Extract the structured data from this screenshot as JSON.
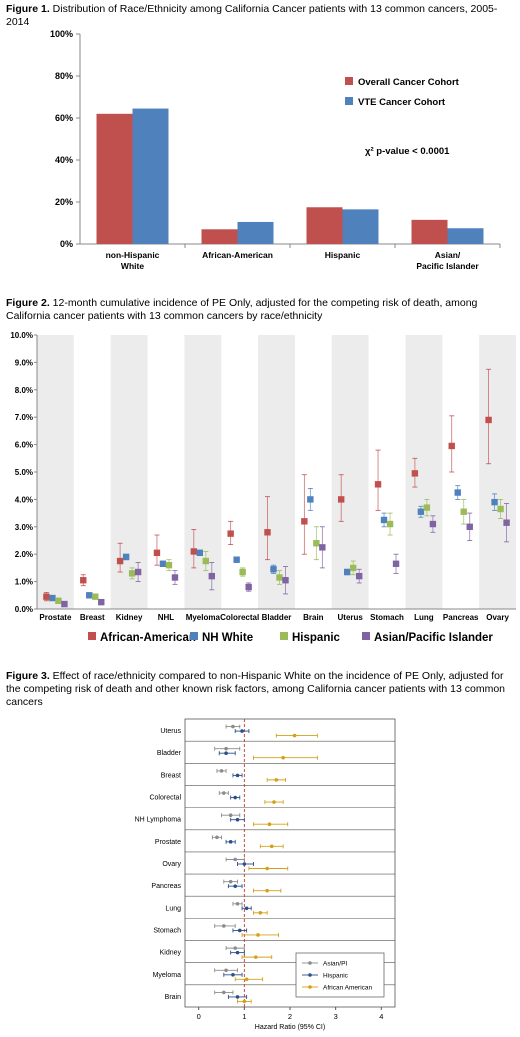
{
  "captions": {
    "fig1_label": "Figure 1.",
    "fig1_text": " Distribution of Race/Ethnicity among California Cancer patients with 13 common cancers, 2005-2014",
    "fig2_label": "Figure 2.",
    "fig2_text": " 12-month cumulative incidence of PE Only, adjusted for the competing risk of death, among California cancer patients with 13 common cancers by race/ethnicity",
    "fig3_label": "Figure 3.",
    "fig3_text": " Effect of race/ethnicity compared to non-Hispanic White on the incidence of PE Only, adjusted for the competing risk of death and other known risk factors, among California cancer patients with 13 common cancers"
  },
  "chart_data": [
    {
      "type": "bar",
      "categories": [
        "non-Hispanic\nWhite",
        "African-American",
        "Hispanic",
        "Asian/\nPacific Islander"
      ],
      "series": [
        {
          "name": "Overall Cancer Cohort",
          "color": "#c0504d",
          "values": [
            62,
            7,
            17.5,
            11.5
          ]
        },
        {
          "name": "VTE Cancer Cohort",
          "color": "#4f81bd",
          "values": [
            64.5,
            10.5,
            16.5,
            7.5
          ]
        }
      ],
      "ylim": [
        0,
        100
      ],
      "yticks": [
        "0%",
        "20%",
        "40%",
        "60%",
        "80%",
        "100%"
      ],
      "annotation": "χ² p-value < 0.0001",
      "legend_position": "right"
    },
    {
      "type": "scatter",
      "categories": [
        "Prostate",
        "Breast",
        "Kidney",
        "NHL",
        "Myeloma",
        "Colorectal",
        "Bladder",
        "Brain",
        "Uterus",
        "Stomach",
        "Lung",
        "Pancreas",
        "Ovary"
      ],
      "ylim": [
        0,
        10
      ],
      "yticks": [
        "0.0%",
        "1.0%",
        "2.0%",
        "3.0%",
        "4.0%",
        "5.0%",
        "6.0%",
        "7.0%",
        "8.0%",
        "9.0%",
        "10.0%"
      ],
      "series": [
        {
          "name": "African-American",
          "color": "#c0504d",
          "values": [
            0.45,
            1.05,
            1.75,
            2.05,
            2.1,
            2.75,
            2.8,
            3.2,
            4.0,
            4.55,
            4.95,
            5.95,
            6.9
          ],
          "lo": [
            0.3,
            0.85,
            1.35,
            1.6,
            1.5,
            2.35,
            1.8,
            2.0,
            3.2,
            3.6,
            4.45,
            5.0,
            5.3
          ],
          "hi": [
            0.6,
            1.25,
            2.4,
            2.7,
            2.9,
            3.2,
            4.1,
            4.9,
            4.9,
            5.8,
            5.5,
            7.05,
            8.75
          ]
        },
        {
          "name": "NH White",
          "color": "#4f81bd",
          "values": [
            0.4,
            0.5,
            1.9,
            1.65,
            2.05,
            1.8,
            1.45,
            4.0,
            1.35,
            3.25,
            3.55,
            4.25,
            3.9
          ],
          "lo": [
            0.35,
            0.45,
            1.8,
            1.55,
            1.95,
            1.7,
            1.3,
            3.6,
            1.25,
            3.0,
            3.35,
            4.0,
            3.6
          ],
          "hi": [
            0.45,
            0.55,
            2.0,
            1.75,
            2.15,
            1.9,
            1.6,
            4.4,
            1.45,
            3.5,
            3.75,
            4.5,
            4.2
          ]
        },
        {
          "name": "Hispanic",
          "color": "#9bbb59",
          "values": [
            0.3,
            0.45,
            1.3,
            1.6,
            1.75,
            1.35,
            1.15,
            2.4,
            1.5,
            3.1,
            3.7,
            3.55,
            3.65
          ],
          "lo": [
            0.22,
            0.38,
            1.1,
            1.4,
            1.4,
            1.2,
            0.9,
            1.8,
            1.25,
            2.7,
            3.4,
            3.1,
            3.3
          ],
          "hi": [
            0.38,
            0.52,
            1.5,
            1.8,
            2.1,
            1.5,
            1.4,
            3.0,
            1.75,
            3.5,
            4.0,
            4.0,
            4.0
          ]
        },
        {
          "name": "Asian/Pacific Islander",
          "color": "#8064a2",
          "values": [
            0.18,
            0.25,
            1.35,
            1.15,
            1.2,
            0.8,
            1.05,
            2.25,
            1.2,
            1.65,
            3.1,
            3.0,
            3.15
          ],
          "lo": [
            0.1,
            0.18,
            1.0,
            0.9,
            0.7,
            0.65,
            0.55,
            1.5,
            0.95,
            1.3,
            2.8,
            2.5,
            2.45
          ],
          "hi": [
            0.26,
            0.32,
            1.7,
            1.4,
            1.7,
            0.95,
            1.55,
            3.0,
            1.45,
            2.0,
            3.4,
            3.5,
            3.85
          ]
        }
      ],
      "legend_position": "bottom"
    },
    {
      "type": "scatter",
      "categories": [
        "Uterus",
        "Bladder",
        "Breast",
        "Colorectal",
        "NH Lymphoma",
        "Prostate",
        "Ovary",
        "Pancreas",
        "Lung",
        "Stomach",
        "Kidney",
        "Myeloma",
        "Brain"
      ],
      "xlim": [
        -0.3,
        4.3
      ],
      "xticks": [
        "0",
        "1",
        "2",
        "3",
        "4"
      ],
      "xlabel": "Hazard Ratio (95% CI)",
      "reference_line": 1,
      "series": [
        {
          "name": "Asian/PI",
          "color": "#8c8c8c",
          "values": [
            0.75,
            0.6,
            0.5,
            0.55,
            0.7,
            0.4,
            0.8,
            0.7,
            0.85,
            0.55,
            0.8,
            0.6,
            0.55
          ],
          "lo": [
            0.6,
            0.35,
            0.4,
            0.45,
            0.5,
            0.3,
            0.6,
            0.55,
            0.75,
            0.35,
            0.6,
            0.35,
            0.35
          ],
          "hi": [
            0.9,
            0.9,
            0.6,
            0.65,
            0.9,
            0.5,
            1.0,
            0.85,
            0.95,
            0.8,
            1.0,
            0.85,
            0.75
          ]
        },
        {
          "name": "Hispanic",
          "color": "#2c4f8c",
          "values": [
            0.95,
            0.6,
            0.85,
            0.8,
            0.85,
            0.7,
            1.0,
            0.8,
            1.05,
            0.9,
            0.85,
            0.75,
            0.85
          ],
          "lo": [
            0.8,
            0.45,
            0.75,
            0.7,
            0.7,
            0.6,
            0.85,
            0.65,
            0.95,
            0.75,
            0.7,
            0.55,
            0.65
          ],
          "hi": [
            1.1,
            0.8,
            0.95,
            0.9,
            1.0,
            0.8,
            1.2,
            0.95,
            1.15,
            1.05,
            1.0,
            0.95,
            1.05
          ]
        },
        {
          "name": "African American",
          "color": "#d4a017",
          "values": [
            2.1,
            1.85,
            1.7,
            1.65,
            1.55,
            1.6,
            1.5,
            1.5,
            1.35,
            1.3,
            1.25,
            1.05,
            1.0
          ],
          "lo": [
            1.7,
            1.2,
            1.5,
            1.45,
            1.2,
            1.35,
            1.1,
            1.2,
            1.2,
            0.95,
            0.95,
            0.8,
            0.85
          ],
          "hi": [
            2.6,
            2.6,
            1.9,
            1.85,
            1.95,
            1.85,
            1.95,
            1.8,
            1.5,
            1.75,
            1.6,
            1.4,
            1.15
          ]
        }
      ],
      "legend_position": "bottom-right"
    }
  ]
}
